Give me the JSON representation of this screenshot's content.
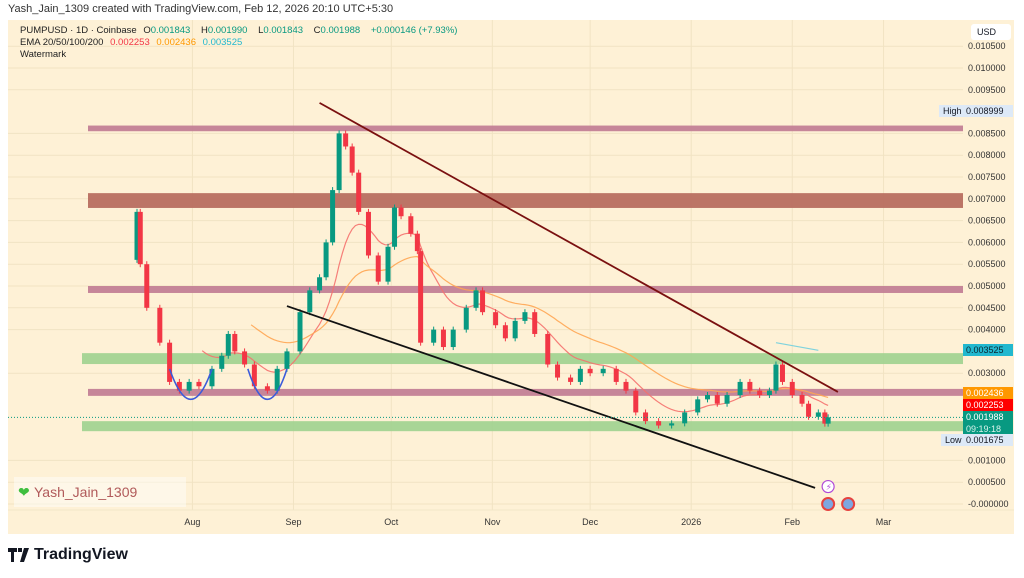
{
  "credit": "Yash_Jain_1309 created with TradingView.com, Feb 12, 2026 20:10 UTC+5:30",
  "legend": {
    "symbol": "PUMPUSD · 1D · Coinbase",
    "o_label": "O",
    "o": "0.001843",
    "h_label": "H",
    "h": "0.001990",
    "l_label": "L",
    "l": "0.001843",
    "c_label": "C",
    "c": "0.001988",
    "change": "+0.000146 (+7.93%)",
    "ema_label": "EMA 20/50/100/200",
    "ema20": "0.002253",
    "ema50": "0.002436",
    "ema200": "0.003525",
    "watermark_label": "Watermark"
  },
  "currency": "USD",
  "watermark": "Yash_Jain_1309",
  "footer": "TradingView",
  "price_labels": {
    "high_tag": "High",
    "high": "0.008999",
    "ema200": "0.003525",
    "ema50": "0.002436",
    "ema20": "0.002253",
    "last": "0.001988",
    "countdown": "09:19:18",
    "low_tag": "Low",
    "low": "0.001675"
  },
  "colors": {
    "background": "#fef1d6",
    "up": "#089981",
    "down": "#f23645",
    "ema20": "#f5716e",
    "ema50": "#ffa552",
    "ema200": "#7fd3dd",
    "pink_band": "#c07a92",
    "brown_band": "#b86e60",
    "green_band": "#9fd18f",
    "resistance": "#7a1010",
    "support": "#111111",
    "arc": "#3b5bdb"
  },
  "chart_data": {
    "type": "candlestick",
    "title": "PUMPUSD · 1D · Coinbase",
    "ylim": [
      -0.0001,
      0.0107
    ],
    "y_ticks": [
      "0.010500",
      "0.010000",
      "0.009500",
      "0.008500",
      "0.008000",
      "0.007500",
      "0.007000",
      "0.006500",
      "0.006000",
      "0.005500",
      "0.005000",
      "0.004500",
      "0.004000",
      "0.003000",
      "0.001000",
      "0.000500",
      "-0.000000"
    ],
    "x_ticks": [
      {
        "date": "2025-08-01",
        "label": "Aug"
      },
      {
        "date": "2025-09-01",
        "label": "Sep"
      },
      {
        "date": "2025-10-01",
        "label": "Oct"
      },
      {
        "date": "2025-11-01",
        "label": "Nov"
      },
      {
        "date": "2025-12-01",
        "label": "Dec"
      },
      {
        "date": "2026-01-01",
        "label": "2026"
      },
      {
        "date": "2026-02-01",
        "label": "Feb"
      },
      {
        "date": "2026-03-01",
        "label": "Mar"
      }
    ],
    "first_open": 0.0056,
    "closes": [
      [
        "2025-07-15",
        0.0067
      ],
      [
        "2025-07-16",
        0.0055
      ],
      [
        "2025-07-18",
        0.0045
      ],
      [
        "2025-07-22",
        0.0037
      ],
      [
        "2025-07-25",
        0.0028
      ],
      [
        "2025-07-28",
        0.0026
      ],
      [
        "2025-07-31",
        0.0028
      ],
      [
        "2025-08-03",
        0.0027
      ],
      [
        "2025-08-07",
        0.0031
      ],
      [
        "2025-08-10",
        0.0034
      ],
      [
        "2025-08-12",
        0.0039
      ],
      [
        "2025-08-14",
        0.0035
      ],
      [
        "2025-08-17",
        0.0032
      ],
      [
        "2025-08-20",
        0.0027
      ],
      [
        "2025-08-24",
        0.0026
      ],
      [
        "2025-08-27",
        0.0031
      ],
      [
        "2025-08-30",
        0.0035
      ],
      [
        "2025-09-03",
        0.0044
      ],
      [
        "2025-09-06",
        0.0049
      ],
      [
        "2025-09-09",
        0.0052
      ],
      [
        "2025-09-11",
        0.006
      ],
      [
        "2025-09-13",
        0.0072
      ],
      [
        "2025-09-15",
        0.0085
      ],
      [
        "2025-09-17",
        0.0082
      ],
      [
        "2025-09-19",
        0.0076
      ],
      [
        "2025-09-21",
        0.0067
      ],
      [
        "2025-09-24",
        0.0057
      ],
      [
        "2025-09-27",
        0.0051
      ],
      [
        "2025-09-30",
        0.0059
      ],
      [
        "2025-10-02",
        0.0068
      ],
      [
        "2025-10-04",
        0.0066
      ],
      [
        "2025-10-07",
        0.0062
      ],
      [
        "2025-10-09",
        0.0058
      ],
      [
        "2025-10-10",
        0.0037
      ],
      [
        "2025-10-14",
        0.004
      ],
      [
        "2025-10-17",
        0.0036
      ],
      [
        "2025-10-20",
        0.004
      ],
      [
        "2025-10-24",
        0.0045
      ],
      [
        "2025-10-27",
        0.0049
      ],
      [
        "2025-10-29",
        0.0044
      ],
      [
        "2025-11-02",
        0.0041
      ],
      [
        "2025-11-05",
        0.0038
      ],
      [
        "2025-11-08",
        0.0042
      ],
      [
        "2025-11-11",
        0.0044
      ],
      [
        "2025-11-14",
        0.0039
      ],
      [
        "2025-11-18",
        0.0032
      ],
      [
        "2025-11-21",
        0.0029
      ],
      [
        "2025-11-25",
        0.0028
      ],
      [
        "2025-11-28",
        0.0031
      ],
      [
        "2025-12-01",
        0.003
      ],
      [
        "2025-12-05",
        0.0031
      ],
      [
        "2025-12-09",
        0.0028
      ],
      [
        "2025-12-12",
        0.0026
      ],
      [
        "2025-12-15",
        0.0021
      ],
      [
        "2025-12-18",
        0.0019
      ],
      [
        "2025-12-22",
        0.0018
      ],
      [
        "2025-12-26",
        0.00185
      ],
      [
        "2025-12-30",
        0.0021
      ],
      [
        "2026-01-03",
        0.0024
      ],
      [
        "2026-01-06",
        0.0025
      ],
      [
        "2026-01-09",
        0.0023
      ],
      [
        "2026-01-12",
        0.0025
      ],
      [
        "2026-01-16",
        0.0028
      ],
      [
        "2026-01-19",
        0.0026
      ],
      [
        "2026-01-22",
        0.0025
      ],
      [
        "2026-01-25",
        0.0026
      ],
      [
        "2026-01-27",
        0.0032
      ],
      [
        "2026-01-29",
        0.0028
      ],
      [
        "2026-02-01",
        0.0025
      ],
      [
        "2026-02-04",
        0.0023
      ],
      [
        "2026-02-06",
        0.002
      ],
      [
        "2026-02-09",
        0.0021
      ],
      [
        "2026-02-11",
        0.001843
      ],
      [
        "2026-02-12",
        0.001988
      ]
    ],
    "bands": [
      {
        "kind": "pink_band",
        "top": 0.00868,
        "bottom": 0.00855
      },
      {
        "kind": "brown_band",
        "top": 0.00713,
        "bottom": 0.00679
      },
      {
        "kind": "pink_band",
        "top": 0.005,
        "bottom": 0.00484
      },
      {
        "kind": "green_band",
        "top": 0.00346,
        "bottom": 0.00321
      },
      {
        "kind": "pink_band",
        "top": 0.00264,
        "bottom": 0.00248
      },
      {
        "kind": "green_band",
        "top": 0.0019,
        "bottom": 0.00167
      }
    ],
    "trendlines": [
      {
        "kind": "resistance",
        "from": [
          "2025-09-09",
          0.0092
        ],
        "to": [
          "2026-02-15",
          0.00257
        ]
      },
      {
        "kind": "support",
        "from": [
          "2025-08-30",
          0.00454
        ],
        "to": [
          "2026-02-08",
          0.00037
        ]
      }
    ],
    "arcs": [
      {
        "from": "2025-07-25",
        "to": "2025-08-07",
        "low": 0.0024,
        "top": 0.0031
      },
      {
        "from": "2025-08-18",
        "to": "2025-08-30",
        "low": 0.0024,
        "top": 0.0031
      }
    ],
    "ema200_segment": {
      "from": [
        "2026-01-27",
        0.0037
      ],
      "to": [
        "2026-02-09",
        0.003525
      ]
    },
    "high": 0.008999,
    "low": 0.001675,
    "last": 0.001988
  }
}
